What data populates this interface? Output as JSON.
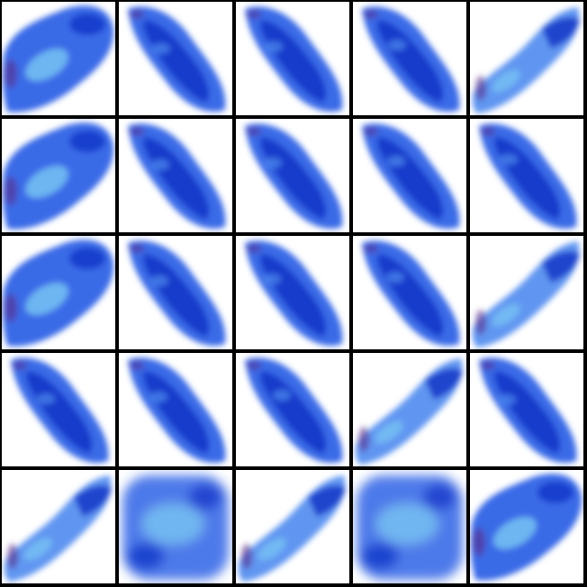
{
  "title": "",
  "grid": {
    "rows": 5,
    "cols": 5,
    "background_color": "#ffffff",
    "border_color": "#000000"
  },
  "palette": {
    "deep_blue": "#1436c8",
    "mid_blue": "#2f63e6",
    "bright_blue": "#4f8bf0",
    "cyan_highlight": "#7fd0f5",
    "purple_edge": "#5a2b8a"
  },
  "tiles": [
    {
      "shape": "blob-arc",
      "variant": "rising",
      "description_icon": "blue-smoke-icon"
    },
    {
      "shape": "diagonal",
      "variant": "falling",
      "description_icon": "blue-smoke-icon"
    },
    {
      "shape": "diagonal",
      "variant": "falling",
      "description_icon": "blue-smoke-icon"
    },
    {
      "shape": "diagonal",
      "variant": "falling",
      "description_icon": "blue-smoke-icon"
    },
    {
      "shape": "wisp",
      "variant": "rising",
      "description_icon": "blue-smoke-icon"
    },
    {
      "shape": "blob-arc",
      "variant": "rising",
      "description_icon": "blue-smoke-icon"
    },
    {
      "shape": "diagonal",
      "variant": "falling",
      "description_icon": "blue-smoke-icon"
    },
    {
      "shape": "diagonal",
      "variant": "falling",
      "description_icon": "blue-smoke-icon"
    },
    {
      "shape": "diagonal",
      "variant": "falling",
      "description_icon": "blue-smoke-icon"
    },
    {
      "shape": "diagonal",
      "variant": "falling",
      "description_icon": "blue-smoke-icon"
    },
    {
      "shape": "blob-arc",
      "variant": "rising",
      "description_icon": "blue-smoke-icon"
    },
    {
      "shape": "diagonal",
      "variant": "falling",
      "description_icon": "blue-smoke-icon"
    },
    {
      "shape": "diagonal",
      "variant": "falling",
      "description_icon": "blue-smoke-icon"
    },
    {
      "shape": "diagonal",
      "variant": "falling",
      "description_icon": "blue-smoke-icon"
    },
    {
      "shape": "wisp",
      "variant": "rising",
      "description_icon": "blue-smoke-icon"
    },
    {
      "shape": "diagonal",
      "variant": "falling",
      "description_icon": "blue-smoke-icon"
    },
    {
      "shape": "diagonal",
      "variant": "falling",
      "description_icon": "blue-smoke-icon"
    },
    {
      "shape": "diagonal",
      "variant": "falling",
      "description_icon": "blue-smoke-icon"
    },
    {
      "shape": "wisp",
      "variant": "rising",
      "description_icon": "blue-smoke-icon"
    },
    {
      "shape": "diagonal",
      "variant": "falling",
      "description_icon": "blue-smoke-icon"
    },
    {
      "shape": "wisp",
      "variant": "rising",
      "description_icon": "blue-smoke-icon"
    },
    {
      "shape": "cloud",
      "variant": "rising",
      "description_icon": "blue-smoke-icon"
    },
    {
      "shape": "wisp",
      "variant": "rising",
      "description_icon": "blue-smoke-icon"
    },
    {
      "shape": "cloud",
      "variant": "rising",
      "description_icon": "blue-smoke-icon"
    },
    {
      "shape": "blob-arc",
      "variant": "rising",
      "description_icon": "blue-smoke-icon"
    }
  ]
}
